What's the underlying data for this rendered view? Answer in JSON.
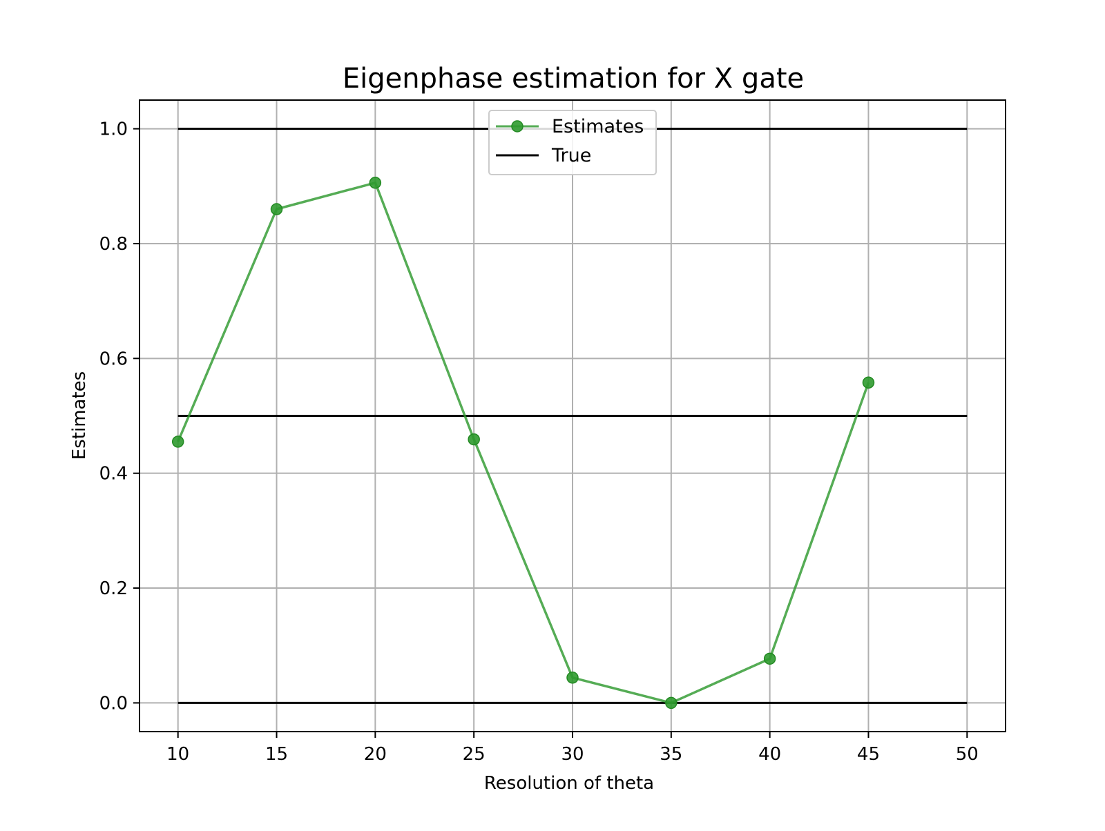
{
  "chart_data": {
    "type": "line",
    "title": "Eigenphase estimation for X gate",
    "xlabel": "Resolution of theta",
    "ylabel": "Estimates",
    "xlim": [
      8.05,
      51.95
    ],
    "ylim": [
      -0.05,
      1.05
    ],
    "xticks": [
      10,
      15,
      20,
      25,
      30,
      35,
      40,
      45,
      50
    ],
    "yticks": [
      0.0,
      0.2,
      0.4,
      0.6,
      0.8,
      1.0
    ],
    "xtick_labels": [
      "10",
      "15",
      "20",
      "25",
      "30",
      "35",
      "40",
      "45",
      "50"
    ],
    "ytick_labels": [
      "0.0",
      "0.2",
      "0.4",
      "0.6",
      "0.8",
      "1.0"
    ],
    "grid": true,
    "legend_position": "top-center",
    "series": [
      {
        "name": "Estimates",
        "style": "line-with-markers",
        "color": "#2f9a2f",
        "x": [
          10,
          15,
          20,
          25,
          30,
          35,
          40,
          45
        ],
        "y": [
          0.455,
          0.86,
          0.906,
          0.459,
          0.044,
          0.0,
          0.077,
          0.558
        ]
      },
      {
        "name": "True",
        "style": "horizontal-lines",
        "color": "#000000",
        "x_range": [
          10,
          50
        ],
        "y_levels": [
          0.0,
          0.5,
          1.0
        ]
      }
    ]
  }
}
